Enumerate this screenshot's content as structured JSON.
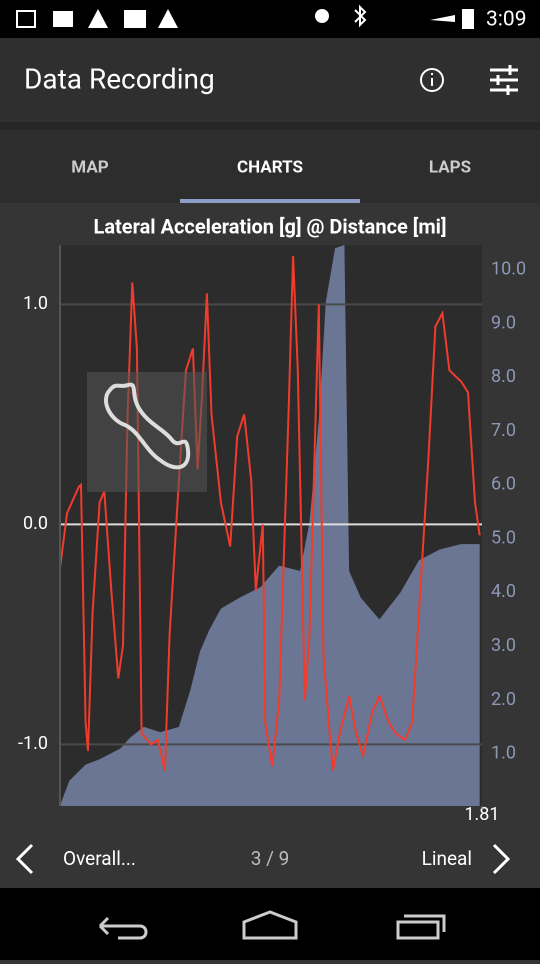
{
  "status_bar": {
    "time": "3:09"
  },
  "app_bar": {
    "title": "Data Recording"
  },
  "tabs": [
    "MAP",
    "CHARTS",
    "LAPS"
  ],
  "selected_tab": 1,
  "chart_data": {
    "type": "line",
    "title": "Lateral Acceleration [g] @ Distance [mi]",
    "xlim": [
      0,
      1.81
    ],
    "xticks": [
      1.81
    ],
    "ylim": [
      -1.28,
      1.27
    ],
    "yticks": [
      {
        "value": 1,
        "label": "1.0"
      },
      {
        "value": 0,
        "label": "0.0"
      },
      {
        "value": -1,
        "label": "-1.0"
      }
    ],
    "y2lim": [
      0.03,
      10.46
    ],
    "y2ticks": [
      {
        "value": 1,
        "label": "1.0"
      },
      {
        "value": 2,
        "label": "2.0"
      },
      {
        "value": 3,
        "label": "3.0"
      },
      {
        "value": 4,
        "label": "4.0"
      },
      {
        "value": 5,
        "label": "5.0"
      },
      {
        "value": 6,
        "label": "6.0"
      },
      {
        "value": 7,
        "label": "7.0"
      },
      {
        "value": 8,
        "label": "8.0"
      },
      {
        "value": 9,
        "label": "9.0"
      },
      {
        "value": 10,
        "label": "10.0"
      }
    ],
    "grid": true,
    "series": [
      {
        "type": "area",
        "axis": "y2",
        "color": "#6b7695",
        "x": [
          0,
          0.04,
          0.11,
          0.17,
          0.26,
          0.3,
          0.36,
          0.43,
          0.51,
          0.56,
          0.6,
          0.64,
          0.69,
          0.77,
          0.86,
          0.94,
          1.03,
          1.07,
          1.11,
          1.14,
          1.18,
          1.22,
          1.24,
          1.29,
          1.37,
          1.46,
          1.54,
          1.63,
          1.72,
          1.8
        ],
        "values": [
          0.04,
          0.5,
          0.8,
          0.9,
          1.1,
          1.3,
          1.5,
          1.4,
          1.5,
          2.2,
          2.9,
          3.3,
          3.7,
          3.9,
          4.1,
          4.5,
          4.4,
          5.3,
          7.2,
          9.4,
          10.4,
          10.46,
          4.4,
          3.9,
          3.5,
          4.0,
          4.6,
          4.8,
          4.9,
          4.9
        ]
      },
      {
        "type": "line",
        "color": "#f03c2c",
        "x": [
          0,
          0.03,
          0.08,
          0.09,
          0.11,
          0.12,
          0.14,
          0.17,
          0.19,
          0.22,
          0.25,
          0.27,
          0.29,
          0.31,
          0.33,
          0.35,
          0.39,
          0.42,
          0.45,
          0.47,
          0.51,
          0.54,
          0.57,
          0.59,
          0.61,
          0.63,
          0.65,
          0.69,
          0.73,
          0.76,
          0.79,
          0.82,
          0.84,
          0.87,
          0.88,
          0.91,
          0.94,
          0.98,
          1.0,
          1.02,
          1.05,
          1.07,
          1.11,
          1.13,
          1.17,
          1.2,
          1.24,
          1.27,
          1.3,
          1.34,
          1.37,
          1.41,
          1.44,
          1.48,
          1.51,
          1.54,
          1.58,
          1.61,
          1.64,
          1.67,
          1.72,
          1.75,
          1.78,
          1.8
        ],
        "values": [
          -0.2,
          0.05,
          0.17,
          0.18,
          -0.9,
          -1.03,
          -0.4,
          0.1,
          0.15,
          -0.3,
          -0.7,
          -0.55,
          0.5,
          1.1,
          0.8,
          -0.95,
          -1.0,
          -0.98,
          -1.12,
          -0.5,
          0.2,
          0.7,
          0.8,
          0.25,
          0.6,
          1.05,
          0.5,
          0.1,
          -0.1,
          0.4,
          0.5,
          0.2,
          -0.3,
          0.0,
          -0.9,
          -1.1,
          -0.8,
          0.5,
          1.22,
          0.7,
          -0.8,
          -0.5,
          1.0,
          -0.6,
          -1.12,
          -0.95,
          -0.78,
          -0.95,
          -1.05,
          -0.85,
          -0.78,
          -0.9,
          -0.95,
          -0.98,
          -0.9,
          -0.4,
          0.3,
          0.9,
          0.96,
          0.7,
          0.65,
          0.6,
          0.1,
          -0.05
        ]
      }
    ]
  },
  "footer": {
    "left": "Overall...",
    "page": "3 / 9",
    "right": "Lineal"
  }
}
